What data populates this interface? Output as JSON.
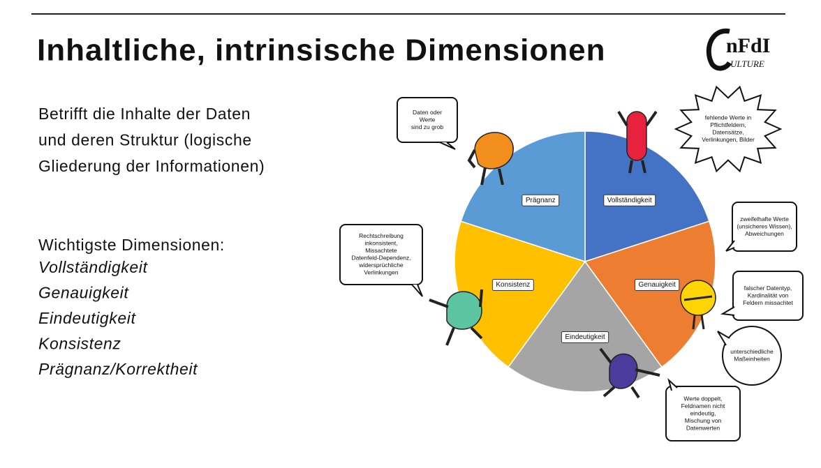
{
  "header": {
    "title": "Inhaltliche, intrinsische Dimensionen",
    "logo": {
      "mark": "nFdI",
      "sub": "ULTURE"
    }
  },
  "intro": [
    "Betrifft die Inhalte der Daten",
    "und deren Struktur (logische",
    "Gliederung der Informationen)"
  ],
  "dimensions": {
    "heading": "Wichtigste Dimensionen:",
    "items": [
      "Vollständigkeit",
      "Genauigkeit",
      "Eindeutigkeit",
      "Konsistenz",
      "Prägnanz/Korrektheit"
    ]
  },
  "diagram": {
    "segments": [
      {
        "label": "Vollständigkeit",
        "color": "#4472c4"
      },
      {
        "label": "Genauigkeit",
        "color": "#ed7d31"
      },
      {
        "label": "Eindeutigkeit",
        "color": "#a5a5a5"
      },
      {
        "label": "Konsistenz",
        "color": "#ffc000"
      },
      {
        "label": "Prägnanz",
        "color": "#5b9bd5"
      }
    ],
    "bubbles": [
      {
        "lines": [
          "Daten oder",
          "Werte",
          "sind zu grob"
        ]
      },
      {
        "lines": [
          "fehlende Werte in",
          "Pflichtfeldern,",
          "Datensätze,",
          "Verlinkungen, Bilder"
        ]
      },
      {
        "lines": [
          "zweifelhafte Werte",
          "(unsicheres Wissen),",
          "Abweichungen"
        ]
      },
      {
        "lines": [
          "falscher Datentyp,",
          "Kardinalität von",
          "Feldern missachtet"
        ]
      },
      {
        "lines": [
          "unterschiedliche",
          "Maßeinheiten"
        ]
      },
      {
        "lines": [
          "Werte doppelt,",
          "Feldnamen nicht",
          "eindeutig,",
          "Mischung von",
          "Datenwerten"
        ]
      },
      {
        "lines": [
          "Rechtschreibung",
          "inkonsistent,",
          "Missachtete",
          "Datenfeld-Dependenz,",
          "widersprüchliche",
          "Verlinkungen"
        ]
      }
    ]
  }
}
